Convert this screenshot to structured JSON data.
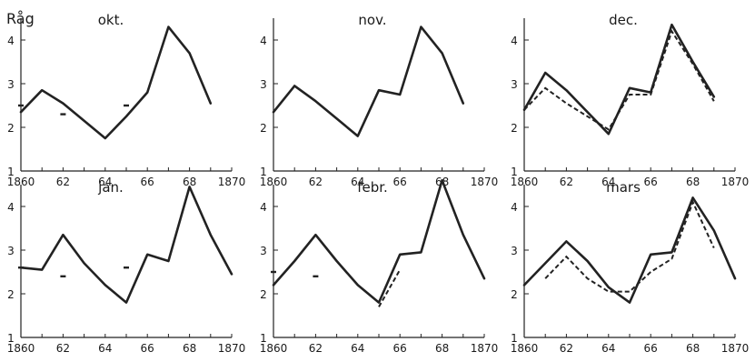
{
  "figure": {
    "ylabel": "Råg",
    "colors": {
      "ink": "#222222",
      "background": "#ffffff"
    }
  },
  "chart_data": [
    {
      "type": "line",
      "title": "okt.",
      "xlim": [
        1860,
        1870
      ],
      "ylim": [
        1,
        4.5
      ],
      "x_ticks": [
        "1860",
        "62",
        "64",
        "66",
        "68",
        "1870"
      ],
      "y_ticks": [
        "1",
        "2",
        "3",
        "4"
      ],
      "series": [
        {
          "style": "solid",
          "x": [
            1860,
            1861,
            1862,
            1864,
            1865,
            1866,
            1867,
            1868,
            1869
          ],
          "y": [
            2.35,
            2.85,
            2.55,
            1.75,
            2.25,
            2.8,
            4.3,
            3.7,
            2.55
          ]
        }
      ],
      "markers": [
        {
          "x": 1860,
          "y": 2.5
        },
        {
          "x": 1862,
          "y": 2.3
        },
        {
          "x": 1865,
          "y": 2.5
        }
      ]
    },
    {
      "type": "line",
      "title": "nov.",
      "xlim": [
        1860,
        1870
      ],
      "ylim": [
        1,
        4.5
      ],
      "x_ticks": [
        "1860",
        "62",
        "64",
        "66",
        "68",
        "1870"
      ],
      "y_ticks": [
        "1",
        "2",
        "3",
        "4"
      ],
      "series": [
        {
          "style": "solid",
          "x": [
            1860,
            1861,
            1862,
            1863,
            1864,
            1865,
            1866,
            1867,
            1868,
            1869
          ],
          "y": [
            2.35,
            2.95,
            2.6,
            2.2,
            1.8,
            2.85,
            2.75,
            4.3,
            3.7,
            2.55
          ]
        }
      ],
      "markers": []
    },
    {
      "type": "line",
      "title": "dec.",
      "xlim": [
        1860,
        1870
      ],
      "ylim": [
        1,
        4.5
      ],
      "x_ticks": [
        "1860",
        "62",
        "64",
        "66",
        "68",
        "1870"
      ],
      "y_ticks": [
        "1",
        "2",
        "3",
        "4"
      ],
      "series": [
        {
          "style": "solid",
          "x": [
            1860,
            1861,
            1862,
            1864,
            1865,
            1866,
            1867,
            1868,
            1869
          ],
          "y": [
            2.4,
            3.25,
            2.85,
            1.85,
            2.9,
            2.8,
            4.35,
            3.5,
            2.7
          ]
        },
        {
          "style": "dashed",
          "x": [
            1860,
            1861,
            1862,
            1864,
            1865,
            1866,
            1867,
            1868,
            1869
          ],
          "y": [
            2.4,
            2.9,
            2.55,
            1.95,
            2.75,
            2.75,
            4.2,
            3.45,
            2.6
          ]
        }
      ],
      "markers": []
    },
    {
      "type": "line",
      "title": "jan.",
      "xlim": [
        1860,
        1870
      ],
      "ylim": [
        1,
        4.5
      ],
      "x_ticks": [
        "1860",
        "62",
        "64",
        "66",
        "68",
        "1870"
      ],
      "y_ticks": [
        "1",
        "2",
        "3",
        "4"
      ],
      "series": [
        {
          "style": "solid",
          "x": [
            1860,
            1861,
            1862,
            1863,
            1864,
            1865,
            1866,
            1867,
            1868,
            1869,
            1870
          ],
          "y": [
            2.6,
            2.55,
            3.35,
            2.7,
            2.2,
            1.8,
            2.9,
            2.75,
            4.45,
            3.35,
            2.45
          ]
        }
      ],
      "markers": [
        {
          "x": 1860,
          "y": 2.6
        },
        {
          "x": 1862,
          "y": 2.4
        },
        {
          "x": 1865,
          "y": 2.6
        }
      ]
    },
    {
      "type": "line",
      "title": "febr.",
      "xlim": [
        1860,
        1870
      ],
      "ylim": [
        1,
        4.5
      ],
      "x_ticks": [
        "1860",
        "62",
        "64",
        "66",
        "68",
        "1870"
      ],
      "y_ticks": [
        "1",
        "2",
        "3",
        "4"
      ],
      "series": [
        {
          "style": "solid",
          "x": [
            1860,
            1861,
            1862,
            1863,
            1864,
            1865,
            1866,
            1867,
            1868,
            1869,
            1870
          ],
          "y": [
            2.2,
            2.75,
            3.35,
            2.75,
            2.2,
            1.8,
            2.9,
            2.95,
            4.6,
            3.35,
            2.35
          ]
        },
        {
          "style": "dashed",
          "x": [
            1865,
            1866
          ],
          "y": [
            1.7,
            2.55
          ]
        }
      ],
      "markers": [
        {
          "x": 1860,
          "y": 2.5
        },
        {
          "x": 1862,
          "y": 2.4
        }
      ]
    },
    {
      "type": "line",
      "title": "mars",
      "xlim": [
        1860,
        1870
      ],
      "ylim": [
        1,
        4.5
      ],
      "x_ticks": [
        "1860",
        "62",
        "64",
        "66",
        "68",
        "1870"
      ],
      "y_ticks": [
        "1",
        "2",
        "3",
        "4"
      ],
      "series": [
        {
          "style": "solid",
          "x": [
            1860,
            1861,
            1862,
            1863,
            1864,
            1865,
            1866,
            1867,
            1868,
            1869,
            1870
          ],
          "y": [
            2.2,
            2.7,
            3.2,
            2.75,
            2.15,
            1.8,
            2.9,
            2.95,
            4.2,
            3.45,
            2.35
          ]
        },
        {
          "style": "dashed",
          "x": [
            1861,
            1862,
            1863,
            1864,
            1865,
            1866,
            1867,
            1868,
            1869
          ],
          "y": [
            2.35,
            2.85,
            2.35,
            2.05,
            2.05,
            2.5,
            2.8,
            4.1,
            3.05
          ]
        }
      ],
      "markers": []
    }
  ]
}
